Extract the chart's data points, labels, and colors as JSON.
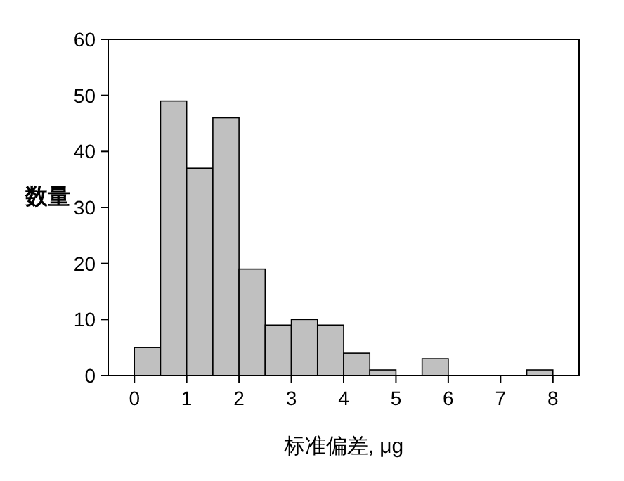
{
  "chart_data": {
    "type": "histogram",
    "xlabel": "标准偏差, μg",
    "ylabel": "数量",
    "bins": [
      0,
      0.5,
      1,
      1.5,
      2,
      2.5,
      3,
      3.5,
      4,
      4.5,
      5,
      5.5,
      6,
      6.5,
      7,
      7.5,
      8
    ],
    "values": [
      5,
      49,
      37,
      46,
      19,
      9,
      10,
      9,
      4,
      1,
      0,
      3,
      0,
      0,
      0,
      1
    ],
    "color": "#c0c0c0",
    "xlim": [
      -0.5,
      8.5
    ],
    "xticks": [
      0,
      1,
      2,
      3,
      4,
      5,
      6,
      7,
      8
    ],
    "ylim": [
      0,
      60
    ],
    "yticks": [
      0,
      10,
      20,
      30,
      40,
      50,
      60
    ]
  }
}
